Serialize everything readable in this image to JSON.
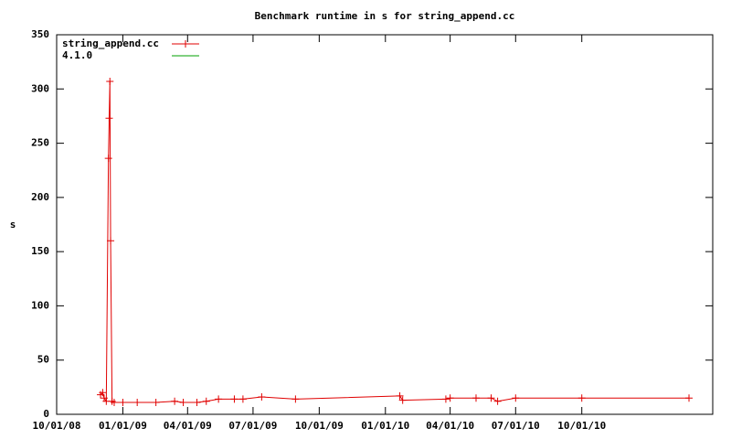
{
  "chart_data": {
    "type": "line",
    "title": "Benchmark runtime in s for string_append.cc",
    "ylabel": "s",
    "xlim": [
      "10/01/08",
      "04/01/11"
    ],
    "xticks": [
      "10/01/08",
      "01/01/09",
      "04/01/09",
      "07/01/09",
      "10/01/09",
      "01/01/10",
      "04/01/10",
      "07/01/10",
      "10/01/10"
    ],
    "ylim": [
      0,
      350
    ],
    "yticks": [
      0,
      50,
      100,
      150,
      200,
      250,
      300,
      350
    ],
    "grid": false,
    "legend": "top-left",
    "series": [
      {
        "name": "string_append.cc",
        "color": "#e00000",
        "marker": "+",
        "x": [
          "12/01/08",
          "12/04/08",
          "12/06/08",
          "12/09/08",
          "12/12/08",
          "12/13/08",
          "12/14/08",
          "12/15/08",
          "12/17/08",
          "12/20/08",
          "01/01/09",
          "01/21/09",
          "02/16/09",
          "03/14/09",
          "03/26/09",
          "04/14/09",
          "04/27/09",
          "05/14/09",
          "06/05/09",
          "06/17/09",
          "07/13/09",
          "08/29/09",
          "01/21/10",
          "01/25/10",
          "03/26/10",
          "04/01/10",
          "05/07/10",
          "05/28/10",
          "06/06/10",
          "07/01/10",
          "10/01/10",
          "02/27/11"
        ],
        "values": [
          18,
          20,
          15,
          12,
          236,
          273,
          307,
          160,
          12,
          11,
          11,
          11,
          11,
          12,
          11,
          11,
          12,
          14,
          14,
          14,
          16,
          14,
          17,
          13,
          14,
          15,
          15,
          15,
          12,
          15,
          15,
          15
        ]
      },
      {
        "name": "4.1.0",
        "color": "#00a000",
        "x": [],
        "values": []
      }
    ]
  }
}
